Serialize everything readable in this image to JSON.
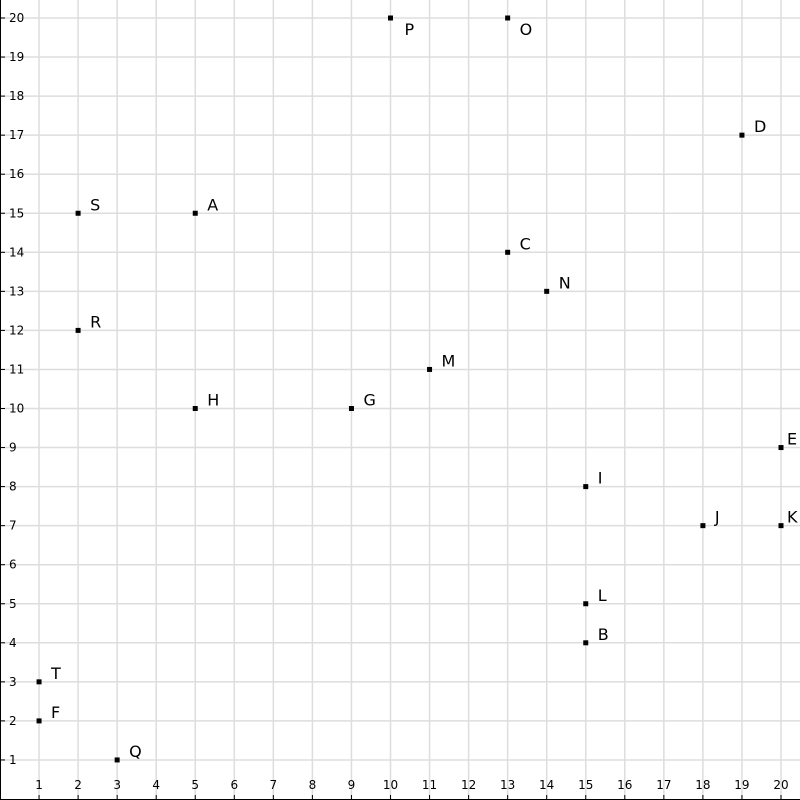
{
  "chart_data": {
    "type": "scatter",
    "title": "",
    "xlabel": "",
    "ylabel": "",
    "xlim": [
      0,
      20
    ],
    "ylim": [
      0,
      20
    ],
    "x_ticks": [
      1,
      2,
      3,
      4,
      5,
      6,
      7,
      8,
      9,
      10,
      11,
      12,
      13,
      14,
      15,
      16,
      17,
      18,
      19,
      20
    ],
    "y_ticks": [
      1,
      2,
      3,
      4,
      5,
      6,
      7,
      8,
      9,
      10,
      11,
      12,
      13,
      14,
      15,
      16,
      17,
      18,
      19,
      20
    ],
    "grid": true,
    "colors": {
      "grid": "#dddddd",
      "point": "#000000",
      "axis": "#000000"
    },
    "points": [
      {
        "label": "A",
        "x": 5,
        "y": 15
      },
      {
        "label": "B",
        "x": 15,
        "y": 4
      },
      {
        "label": "C",
        "x": 13,
        "y": 14
      },
      {
        "label": "D",
        "x": 19,
        "y": 17
      },
      {
        "label": "E",
        "x": 20,
        "y": 9
      },
      {
        "label": "F",
        "x": 1,
        "y": 2
      },
      {
        "label": "G",
        "x": 9,
        "y": 10
      },
      {
        "label": "H",
        "x": 5,
        "y": 10
      },
      {
        "label": "I",
        "x": 15,
        "y": 8
      },
      {
        "label": "J",
        "x": 18,
        "y": 7
      },
      {
        "label": "K",
        "x": 20,
        "y": 7
      },
      {
        "label": "L",
        "x": 15,
        "y": 5
      },
      {
        "label": "M",
        "x": 11,
        "y": 11
      },
      {
        "label": "N",
        "x": 14,
        "y": 13
      },
      {
        "label": "O",
        "x": 13,
        "y": 20
      },
      {
        "label": "P",
        "x": 10,
        "y": 20
      },
      {
        "label": "Q",
        "x": 3,
        "y": 1
      },
      {
        "label": "R",
        "x": 2,
        "y": 12
      },
      {
        "label": "S",
        "x": 2,
        "y": 15
      },
      {
        "label": "T",
        "x": 1,
        "y": 3
      }
    ]
  }
}
